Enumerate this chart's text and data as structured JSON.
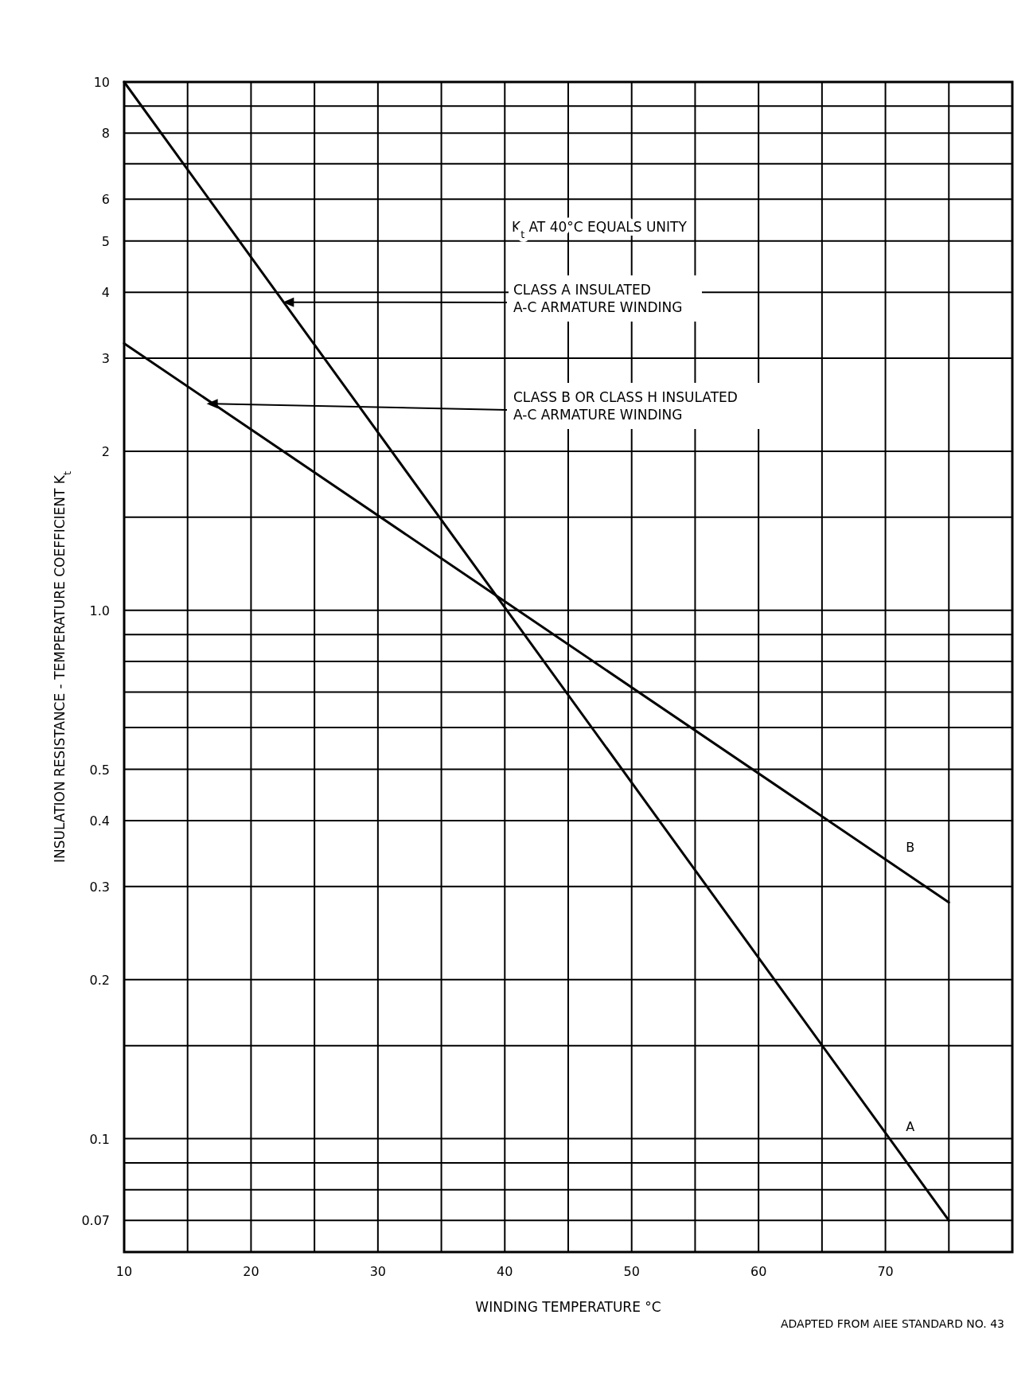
{
  "chart_data": {
    "type": "line",
    "xlabel": "WINDING TEMPERATURE °C",
    "ylabel": "INSULATION RESISTANCE - TEMPERATURE COEFFICIENT K$_{t}$",
    "log": "y",
    "grid": true,
    "marker": "none",
    "line_style": "solid",
    "x": [
      10,
      75
    ],
    "xlim": [
      10,
      80
    ],
    "xticks": [
      10,
      20,
      30,
      40,
      50,
      60,
      70,
      {
        "value": 15,
        "label": null
      },
      {
        "value": 25,
        "label": null
      },
      {
        "value": 35,
        "label": null
      },
      {
        "value": 45,
        "label": null
      },
      {
        "value": 55,
        "label": null
      },
      {
        "value": 65,
        "label": null
      },
      {
        "value": 75,
        "label": null
      }
    ],
    "ylim": [
      0.061,
      10
    ],
    "yticks": [
      {
        "value": 0.07,
        "label": "0.07"
      },
      0.1,
      0.2,
      0.3,
      0.4,
      0.5,
      {
        "value": 1,
        "label": "1.0"
      },
      2,
      3,
      4,
      5,
      6,
      8,
      10,
      {
        "value": 0.08,
        "label": null
      },
      {
        "value": 0.09,
        "label": null
      },
      {
        "value": 0.15,
        "label": null
      },
      {
        "value": 0.6,
        "label": null
      },
      {
        "value": 0.7,
        "label": null
      },
      {
        "value": 0.8,
        "label": null
      },
      {
        "value": 0.9,
        "label": null
      },
      {
        "value": 1.5,
        "label": null
      },
      {
        "value": 7,
        "label": null
      },
      {
        "value": 9,
        "label": null
      }
    ],
    "series": [
      {
        "name": "A",
        "color": "#000000",
        "values": [
          10,
          0.07
        ]
      },
      {
        "name": "B",
        "color": "#000000",
        "values": [
          3.2,
          0.28
        ]
      }
    ],
    "annotations": [
      "K$_{t}$ AT 40°C EQUALS UNITY",
      {
        "text": "CLASS A INSULATED\nA-C ARMATURE  WINDING",
        "x": 22.5,
        "y": 3.83
      },
      {
        "text": "CLASS B OR CLASS H INSULATED\nA-C ARMATURE  WINDING",
        "x": 16.5,
        "y": 2.46
      },
      "ADAPTED FROM AIEE STANDARD NO. 43"
    ]
  }
}
